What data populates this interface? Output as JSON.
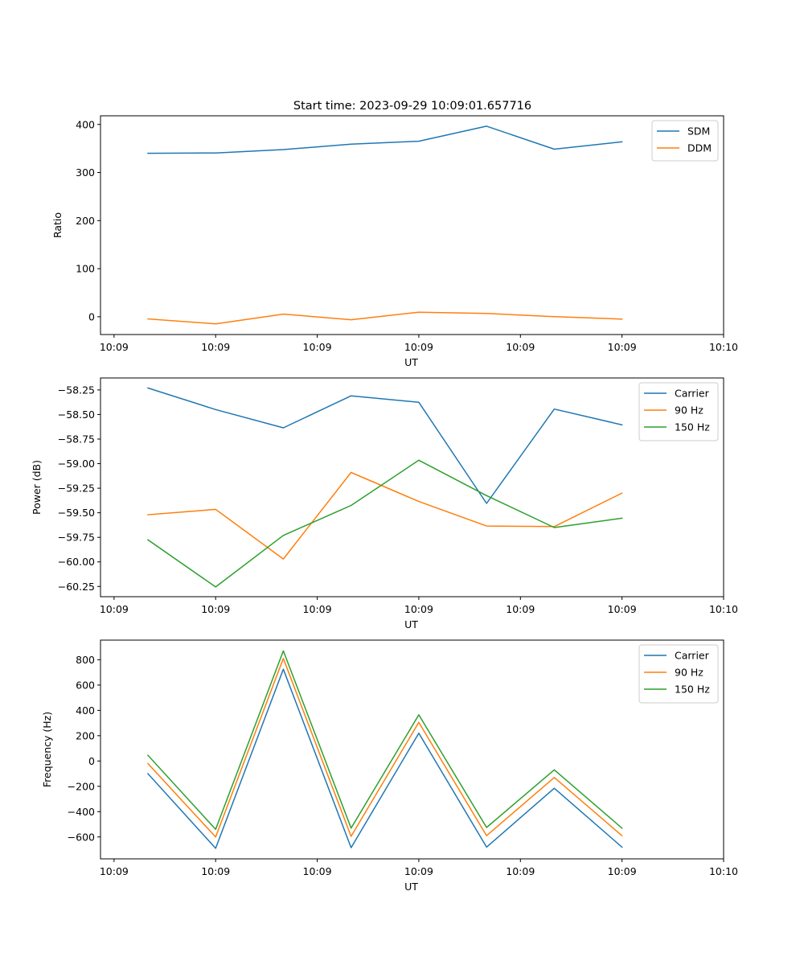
{
  "figure": {
    "title": "Start time: 2023-09-29 10:09:01.657716"
  },
  "chart_data": [
    {
      "type": "line",
      "title": "Start time: 2023-09-29 10:09:01.657716",
      "xlabel": "UT",
      "ylabel": "Ratio",
      "x_tick_labels": [
        "10:09",
        "10:09",
        "10:09",
        "10:09",
        "10:09",
        "10:09",
        "10:10"
      ],
      "y_ticks": [
        0,
        100,
        200,
        300,
        400
      ],
      "y_tick_labels": [
        "0",
        "100",
        "200",
        "300",
        "400"
      ],
      "xlim": [
        -0.2,
        9
      ],
      "ylim": [
        -37,
        418
      ],
      "x": [
        0.5,
        1.5,
        2.5,
        3.5,
        4.5,
        5.5,
        6.5,
        7.5
      ],
      "series": [
        {
          "name": "SDM",
          "color": "#1f77b4",
          "values": [
            340,
            340.8,
            347.8,
            359.2,
            365.2,
            396.5,
            348.5,
            364
          ]
        },
        {
          "name": "DDM",
          "color": "#ff7f0e",
          "values": [
            -4.5,
            -14.8,
            5.5,
            -6.3,
            9.5,
            6.8,
            0.2,
            -4.8
          ]
        }
      ],
      "legend": "top-right",
      "grid": false
    },
    {
      "type": "line",
      "title": "",
      "xlabel": "UT",
      "ylabel": "Power (dB)",
      "x_tick_labels": [
        "10:09",
        "10:09",
        "10:09",
        "10:09",
        "10:09",
        "10:09",
        "10:10"
      ],
      "y_ticks": [
        -60.25,
        -60.0,
        -59.75,
        -59.5,
        -59.25,
        -59.0,
        -58.75,
        -58.5,
        -58.25
      ],
      "y_tick_labels": [
        "−60.25",
        "−60.00",
        "−59.75",
        "−59.50",
        "−59.25",
        "−59.00",
        "−58.75",
        "−58.50",
        "−58.25"
      ],
      "xlim": [
        -0.2,
        9
      ],
      "ylim": [
        -60.354,
        -58.128
      ],
      "x": [
        0.5,
        1.5,
        2.5,
        3.5,
        4.5,
        5.5,
        6.5,
        7.5
      ],
      "series": [
        {
          "name": "Carrier",
          "color": "#1f77b4",
          "values": [
            -58.23,
            -58.45,
            -58.635,
            -58.31,
            -58.375,
            -59.405,
            -58.445,
            -58.605
          ]
        },
        {
          "name": "90 Hz",
          "color": "#ff7f0e",
          "values": [
            -59.52,
            -59.465,
            -59.97,
            -59.09,
            -59.385,
            -59.635,
            -59.64,
            -59.3
          ]
        },
        {
          "name": "150 Hz",
          "color": "#2ca02c",
          "values": [
            -59.775,
            -60.255,
            -59.73,
            -59.425,
            -58.965,
            -59.325,
            -59.65,
            -59.555
          ]
        }
      ],
      "legend": "top-right",
      "grid": false
    },
    {
      "type": "line",
      "title": "",
      "xlabel": "UT",
      "ylabel": "Frequency (Hz)",
      "x_tick_labels": [
        "10:09",
        "10:09",
        "10:09",
        "10:09",
        "10:09",
        "10:09",
        "10:10"
      ],
      "y_ticks": [
        -600,
        -400,
        -200,
        0,
        200,
        400,
        600,
        800
      ],
      "y_tick_labels": [
        "−600",
        "−400",
        "−200",
        "0",
        "200",
        "400",
        "600",
        "800"
      ],
      "xlim": [
        -0.2,
        9
      ],
      "ylim": [
        -773,
        955
      ],
      "x": [
        0.5,
        1.5,
        2.5,
        3.5,
        4.5,
        5.5,
        6.5,
        7.5
      ],
      "series": [
        {
          "name": "Carrier",
          "color": "#1f77b4",
          "values": [
            -100,
            -690,
            725,
            -685,
            220,
            -680,
            -215,
            -680
          ]
        },
        {
          "name": "90 Hz",
          "color": "#ff7f0e",
          "values": [
            -20,
            -600,
            810,
            -595,
            305,
            -590,
            -130,
            -590
          ]
        },
        {
          "name": "150 Hz",
          "color": "#2ca02c",
          "values": [
            45,
            -540,
            870,
            -530,
            365,
            -525,
            -70,
            -530
          ]
        }
      ],
      "legend": "top-right",
      "grid": false
    }
  ]
}
